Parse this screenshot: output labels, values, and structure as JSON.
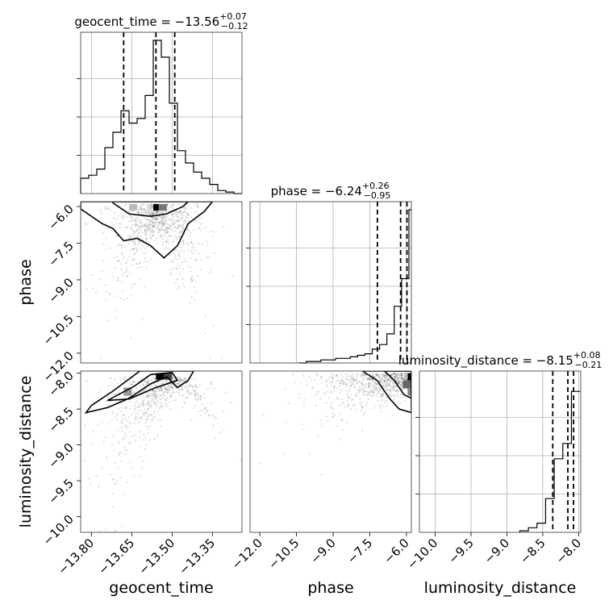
{
  "chart_data": {
    "type": "corner",
    "parameters": [
      {
        "name": "geocent_time",
        "axis_label": "geocent_time",
        "range": [
          -13.84,
          -13.24
        ],
        "ticks": [
          -13.8,
          -13.65,
          -13.5,
          -13.35
        ],
        "tick_labels": [
          "−13.80",
          "−13.65",
          "−13.50",
          "−13.35"
        ],
        "title_main": "geocent_time = −13.56",
        "title_plus": "+0.07",
        "title_minus": "−0.12",
        "quantiles": [
          -13.68,
          -13.56,
          -13.49
        ],
        "histogram": [
          {
            "x": -13.84,
            "y": 0.1
          },
          {
            "x": -13.81,
            "y": 0.12
          },
          {
            "x": -13.78,
            "y": 0.16
          },
          {
            "x": -13.75,
            "y": 0.3
          },
          {
            "x": -13.72,
            "y": 0.4
          },
          {
            "x": -13.69,
            "y": 0.54
          },
          {
            "x": -13.66,
            "y": 0.46
          },
          {
            "x": -13.63,
            "y": 0.49
          },
          {
            "x": -13.6,
            "y": 0.64
          },
          {
            "x": -13.57,
            "y": 1.0
          },
          {
            "x": -13.54,
            "y": 0.89
          },
          {
            "x": -13.51,
            "y": 0.59
          },
          {
            "x": -13.48,
            "y": 0.28
          },
          {
            "x": -13.45,
            "y": 0.2
          },
          {
            "x": -13.42,
            "y": 0.14
          },
          {
            "x": -13.39,
            "y": 0.1
          },
          {
            "x": -13.36,
            "y": 0.06
          },
          {
            "x": -13.33,
            "y": 0.02
          },
          {
            "x": -13.3,
            "y": 0.01
          },
          {
            "x": -13.27,
            "y": 0.0
          }
        ]
      },
      {
        "name": "phase",
        "axis_label": "phase",
        "range": [
          -12.4,
          -5.8
        ],
        "ticks": [
          -12.0,
          -10.5,
          -9.0,
          -7.5,
          -6.0
        ],
        "tick_labels": [
          "−12.0",
          "−10.5",
          "−9.0",
          "−7.5",
          "−6.0"
        ],
        "title_main": "phase = −6.24",
        "title_plus": "+0.26",
        "title_minus": "−0.95",
        "quantiles": [
          -7.19,
          -6.24,
          -5.98
        ],
        "histogram": [
          {
            "x": -10.4,
            "y": 0.0
          },
          {
            "x": -10.1,
            "y": 0.01
          },
          {
            "x": -9.8,
            "y": 0.01
          },
          {
            "x": -9.5,
            "y": 0.02
          },
          {
            "x": -9.2,
            "y": 0.02
          },
          {
            "x": -8.9,
            "y": 0.03
          },
          {
            "x": -8.6,
            "y": 0.03
          },
          {
            "x": -8.3,
            "y": 0.04
          },
          {
            "x": -8.0,
            "y": 0.05
          },
          {
            "x": -7.7,
            "y": 0.06
          },
          {
            "x": -7.4,
            "y": 0.09
          },
          {
            "x": -7.1,
            "y": 0.12
          },
          {
            "x": -6.8,
            "y": 0.19
          },
          {
            "x": -6.5,
            "y": 0.37
          },
          {
            "x": -6.2,
            "y": 0.55
          },
          {
            "x": -5.9,
            "y": 1.0
          }
        ]
      },
      {
        "name": "luminosity_distance",
        "axis_label": "luminosity_distance",
        "range": [
          -10.22,
          -7.97
        ],
        "ticks": [
          -10.0,
          -9.5,
          -9.0,
          -8.5,
          -8.0
        ],
        "tick_labels": [
          "−10.0",
          "−9.5",
          "−9.0",
          "−8.5",
          "−8.0"
        ],
        "title_main": "luminosity_distance = −8.15",
        "title_plus": "+0.08",
        "title_minus": "−0.21",
        "quantiles": [
          -8.36,
          -8.15,
          -8.07
        ],
        "histogram": [
          {
            "x": -8.82,
            "y": 0.01
          },
          {
            "x": -8.7,
            "y": 0.03
          },
          {
            "x": -8.58,
            "y": 0.06
          },
          {
            "x": -8.46,
            "y": 0.22
          },
          {
            "x": -8.34,
            "y": 0.48
          },
          {
            "x": -8.22,
            "y": 0.58
          },
          {
            "x": -8.1,
            "y": 0.92
          }
        ]
      }
    ],
    "histogram_bin_width": [
      0.03,
      0.3,
      0.12
    ],
    "contour_levels": 2,
    "grid": true
  }
}
